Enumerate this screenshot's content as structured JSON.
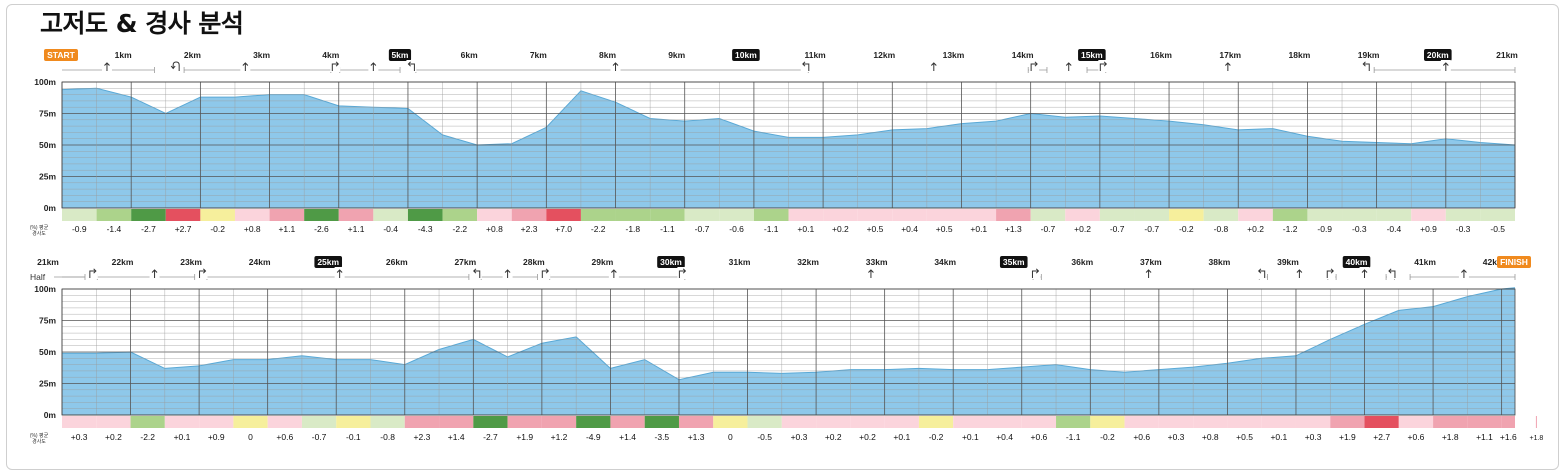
{
  "title": "고저도 & 경사 분석",
  "colors": {
    "elevation_fill": "#8ec8ea",
    "elevation_line": "#5aa9d6",
    "highlight_bg": "#111111",
    "start_finish_bg": "#f08a1e",
    "grade_bins": {
      "le_-2.5": "#4f9a46",
      "-2.5_to_-1": "#acd38b",
      "-1_to_-0.3": "#d9eac6",
      "-0.3_to_0.3": "#f6ef9c",
      "0.3_to_1": "#fbd4dc",
      "1_to_2.5": "#f0a3b0",
      "gt_2.5": "#e4505f"
    }
  },
  "legend": {
    "grade_caption_line1": "(%) 평균",
    "grade_caption_line2": "경사도",
    "half_label": "Half"
  },
  "chart_data": [
    {
      "type": "area",
      "title": "고저도 & 경사 분석",
      "x_unit": "km",
      "ylim": [
        0,
        100
      ],
      "y_ticks": [
        "0m",
        "25m",
        "50m",
        "75m",
        "100m"
      ],
      "km_labels": [
        "START",
        "1km",
        "2km",
        "3km",
        "4km",
        "5km",
        "6km",
        "7km",
        "8km",
        "9km",
        "10km",
        "11km",
        "12km",
        "13km",
        "14km",
        "15km",
        "16km",
        "17km",
        "18km",
        "19km",
        "20km",
        "21km"
      ],
      "highlighted_labels": [
        "5km",
        "10km",
        "15km",
        "20km"
      ],
      "start_label": "START",
      "x": [
        0,
        0.5,
        1,
        1.5,
        2,
        2.5,
        3,
        3.5,
        4,
        4.5,
        5,
        5.5,
        6,
        6.5,
        7,
        7.5,
        8,
        8.5,
        9,
        9.5,
        10,
        10.5,
        11,
        11.5,
        12,
        12.5,
        13,
        13.5,
        14,
        14.5,
        15,
        15.5,
        16,
        16.5,
        17,
        17.5,
        18,
        18.5,
        19,
        19.5,
        20,
        20.5,
        21
      ],
      "elevation": [
        94,
        95,
        88,
        75,
        88,
        88,
        90,
        90,
        81,
        80,
        79,
        58,
        50,
        51,
        64,
        93,
        84,
        71,
        69,
        71,
        61,
        56,
        56,
        58,
        62,
        63,
        67,
        69,
        75,
        72,
        73,
        71,
        69,
        66,
        62,
        63,
        57,
        53,
        52,
        51,
        55,
        52,
        50
      ],
      "grades": [
        "-0.9",
        "-1.4",
        "-2.7",
        "+2.7",
        "-0.2",
        "+0.8",
        "+1.1",
        "-2.6",
        "+1.1",
        "-0.4",
        "-4.3",
        "-2.2",
        "+0.8",
        "+2.3",
        "+7.0",
        "-2.2",
        "-1.8",
        "-1.1",
        "-0.7",
        "-0.6",
        "-1.1",
        "+0.1",
        "+0.2",
        "+0.5",
        "+0.4",
        "+0.5",
        "+0.1",
        "+1.3",
        "-0.7",
        "+0.2",
        "-0.7",
        "-0.7",
        "-0.2",
        "-0.8",
        "+0.2",
        "-1.2",
        "-0.9",
        "-0.3",
        "-0.4",
        "+0.9",
        "-0.3",
        "-0.5"
      ],
      "turns": [
        {
          "km": 0.65,
          "dir": "straight"
        },
        {
          "km": 1.65,
          "dir": "uturn"
        },
        {
          "km": 2.65,
          "dir": "straight"
        },
        {
          "km": 3.95,
          "dir": "right"
        },
        {
          "km": 4.5,
          "dir": "straight"
        },
        {
          "km": 5.05,
          "dir": "left"
        },
        {
          "km": 8.0,
          "dir": "straight"
        },
        {
          "km": 10.75,
          "dir": "left"
        },
        {
          "km": 12.6,
          "dir": "straight"
        },
        {
          "km": 14.05,
          "dir": "right"
        },
        {
          "km": 14.55,
          "dir": "straight"
        },
        {
          "km": 15.05,
          "dir": "right"
        },
        {
          "km": 16.85,
          "dir": "straight"
        },
        {
          "km": 18.85,
          "dir": "left"
        },
        {
          "km": 20.0,
          "dir": "straight"
        }
      ],
      "gaps": [
        1.35,
        1.75,
        3.9,
        4.0,
        4.9,
        5.1,
        10.8,
        13.95,
        14.25,
        14.8,
        15.1,
        18.95
      ]
    },
    {
      "type": "area",
      "x_unit": "km",
      "ylim": [
        0,
        100
      ],
      "y_ticks": [
        "0m",
        "25m",
        "50m",
        "75m",
        "100m"
      ],
      "km_labels": [
        "21km",
        "22km",
        "23km",
        "24km",
        "25km",
        "26km",
        "27km",
        "28km",
        "29km",
        "30km",
        "31km",
        "32km",
        "33km",
        "34km",
        "35km",
        "36km",
        "37km",
        "38km",
        "39km",
        "40km",
        "41km",
        "42km",
        "FINISH"
      ],
      "highlighted_labels": [
        "25km",
        "30km",
        "35km",
        "40km"
      ],
      "finish_label": "FINISH",
      "x": [
        21,
        21.5,
        22,
        22.5,
        23,
        23.5,
        24,
        24.5,
        25,
        25.5,
        26,
        26.5,
        27,
        27.5,
        28,
        28.5,
        29,
        29.5,
        30,
        30.5,
        31,
        31.5,
        32,
        32.5,
        33,
        33.5,
        34,
        34.5,
        35,
        35.5,
        36,
        36.5,
        37,
        37.5,
        38,
        38.5,
        39,
        39.5,
        40,
        40.5,
        41,
        41.5,
        42,
        42.195
      ],
      "elevation": [
        49,
        49,
        50,
        37,
        39,
        44,
        44,
        47,
        44,
        44,
        40,
        52,
        60,
        46,
        57,
        62,
        37,
        44,
        28,
        34,
        34,
        33,
        34,
        36,
        36,
        37,
        36,
        36,
        38,
        40,
        36,
        34,
        36,
        38,
        41,
        45,
        47,
        60,
        72,
        83,
        86,
        94,
        100,
        101
      ],
      "grades": [
        "+0.3",
        "+0.2",
        "-2.2",
        "+0.1",
        "+0.9",
        "0",
        "+0.6",
        "-0.7",
        "-0.1",
        "-0.8",
        "+2.3",
        "+1.4",
        "-2.7",
        "+1.9",
        "+1.2",
        "-4.9",
        "+1.4",
        "-3.5",
        "+1.3",
        "0",
        "-0.5",
        "+0.3",
        "+0.2",
        "+0.2",
        "+0.1",
        "-0.2",
        "+0.1",
        "+0.4",
        "+0.6",
        "-1.1",
        "-0.2",
        "+0.6",
        "+0.3",
        "+0.8",
        "+0.5",
        "+0.1",
        "+0.3",
        "+1.9",
        "+2.7",
        "+0.6",
        "+1.8",
        "+1.1",
        "+1.6",
        "+1.8"
      ],
      "turns": [
        {
          "km": 21.45,
          "dir": "right"
        },
        {
          "km": 22.35,
          "dir": "straight"
        },
        {
          "km": 23.05,
          "dir": "right"
        },
        {
          "km": 25.05,
          "dir": "straight"
        },
        {
          "km": 27.05,
          "dir": "left"
        },
        {
          "km": 27.5,
          "dir": "straight"
        },
        {
          "km": 28.05,
          "dir": "right"
        },
        {
          "km": 29.05,
          "dir": "straight"
        },
        {
          "km": 30.05,
          "dir": "right"
        },
        {
          "km": 32.8,
          "dir": "straight"
        },
        {
          "km": 35.2,
          "dir": "right"
        },
        {
          "km": 36.85,
          "dir": "straight"
        },
        {
          "km": 38.5,
          "dir": "left"
        },
        {
          "km": 39.05,
          "dir": "straight"
        },
        {
          "km": 39.5,
          "dir": "right"
        },
        {
          "km": 40.0,
          "dir": "straight"
        },
        {
          "km": 40.4,
          "dir": "left"
        },
        {
          "km": 41.45,
          "dir": "straight"
        }
      ],
      "gaps": [
        21.35,
        21.5,
        22.95,
        23.1,
        26.95,
        27.1,
        27.95,
        28.1,
        30.1,
        35.15,
        35.3,
        38.45,
        38.6,
        39.45,
        39.6,
        40.3,
        40.45,
        40.65
      ]
    }
  ]
}
